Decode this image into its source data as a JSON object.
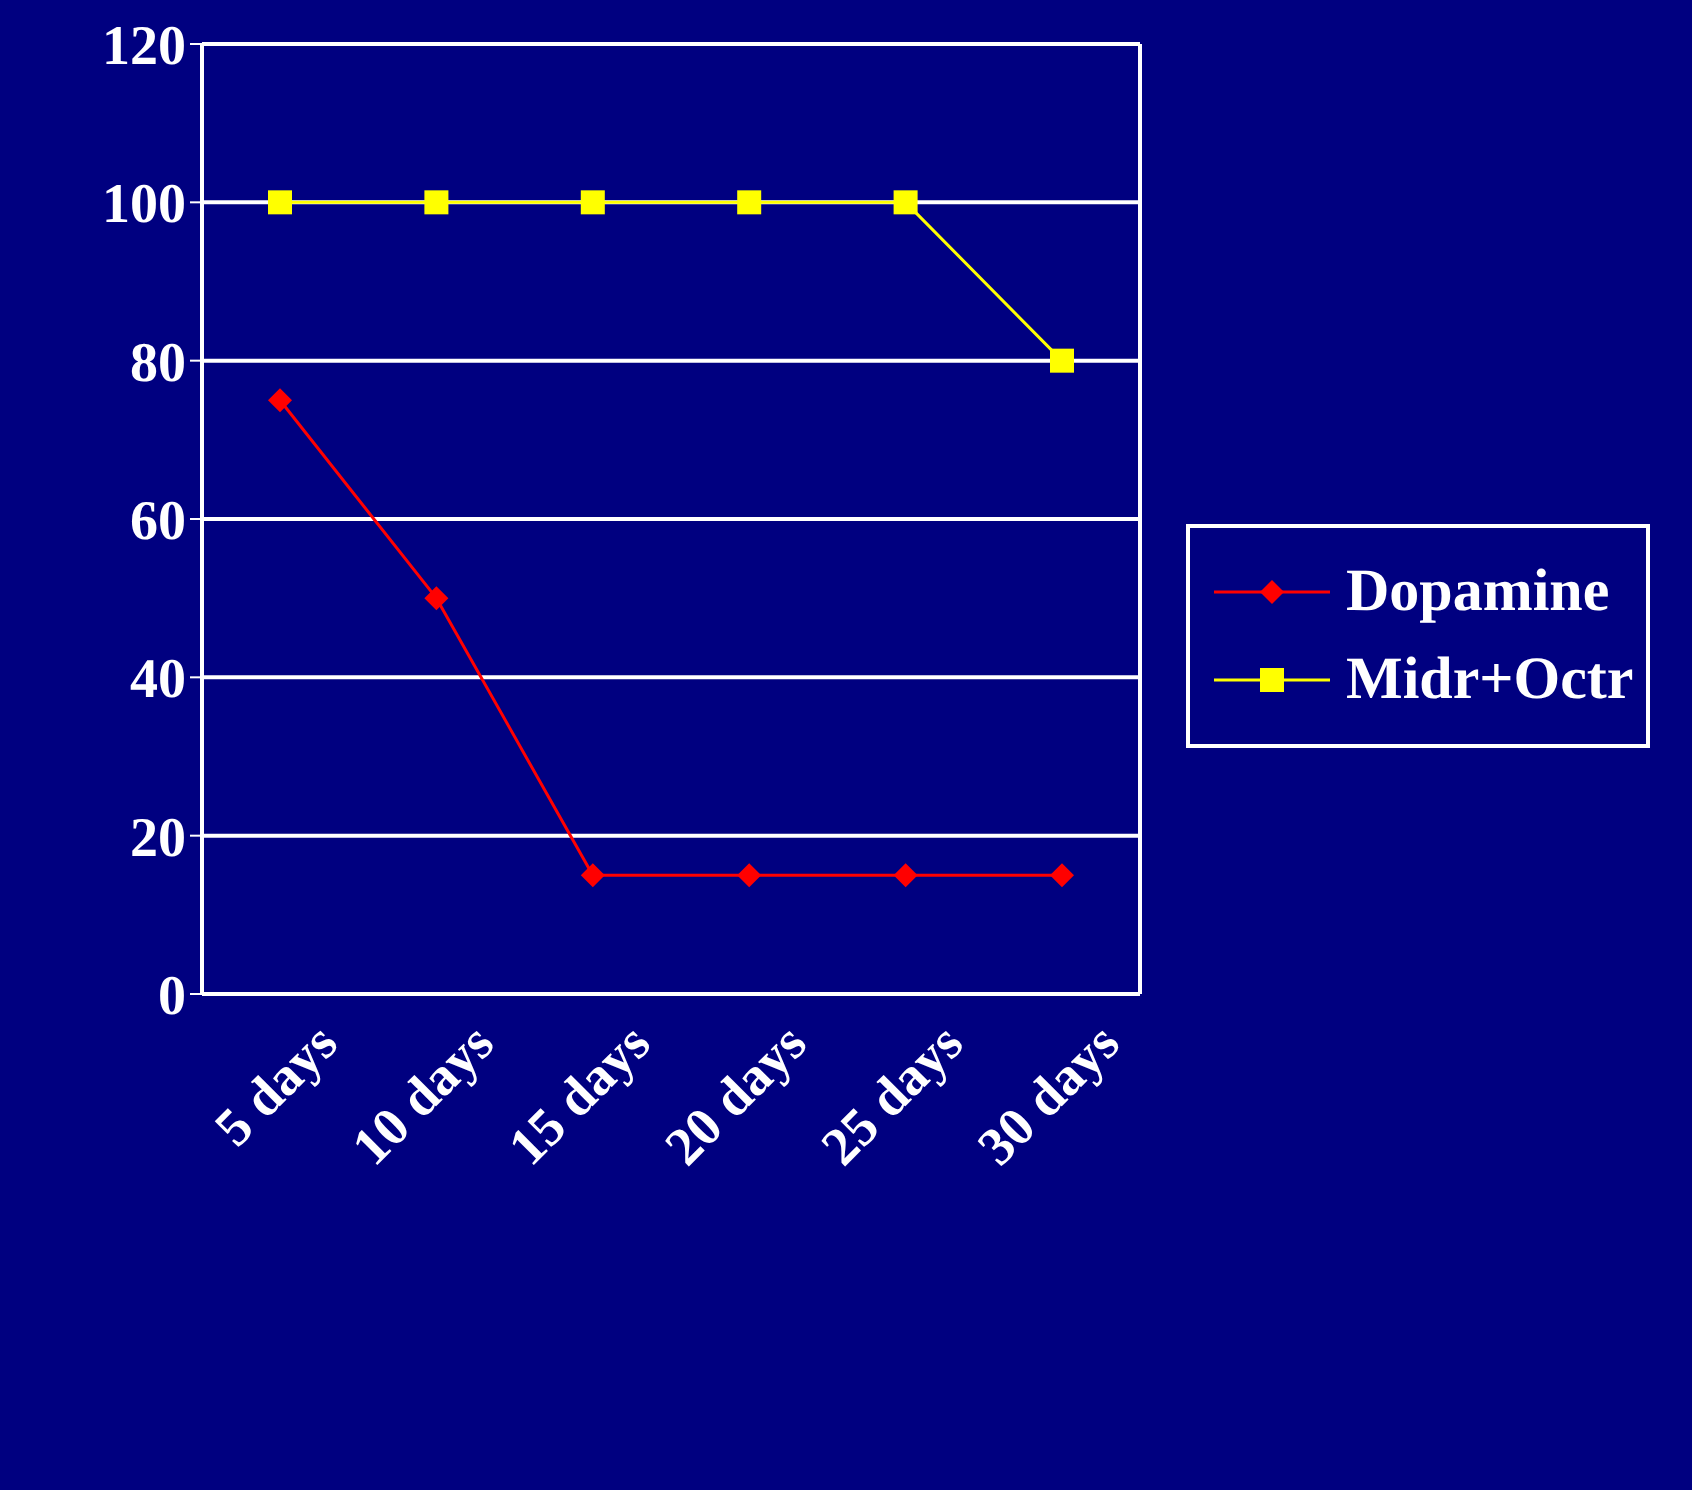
{
  "chart_data": {
    "type": "line",
    "categories": [
      "5 days",
      "10 days",
      "15 days",
      "20 days",
      "25 days",
      "30 days"
    ],
    "series": [
      {
        "name": "Dopamine",
        "color": "#ff0000",
        "marker": "diamond",
        "values": [
          75,
          50,
          15,
          15,
          15,
          15
        ]
      },
      {
        "name": "Midr+Octr",
        "color": "#ffff00",
        "marker": "square",
        "values": [
          100,
          100,
          100,
          100,
          100,
          80
        ]
      }
    ],
    "ylim": [
      0,
      120
    ],
    "yticks": [
      0,
      20,
      40,
      60,
      80,
      100,
      120
    ],
    "grid": "y",
    "legend": "right"
  }
}
